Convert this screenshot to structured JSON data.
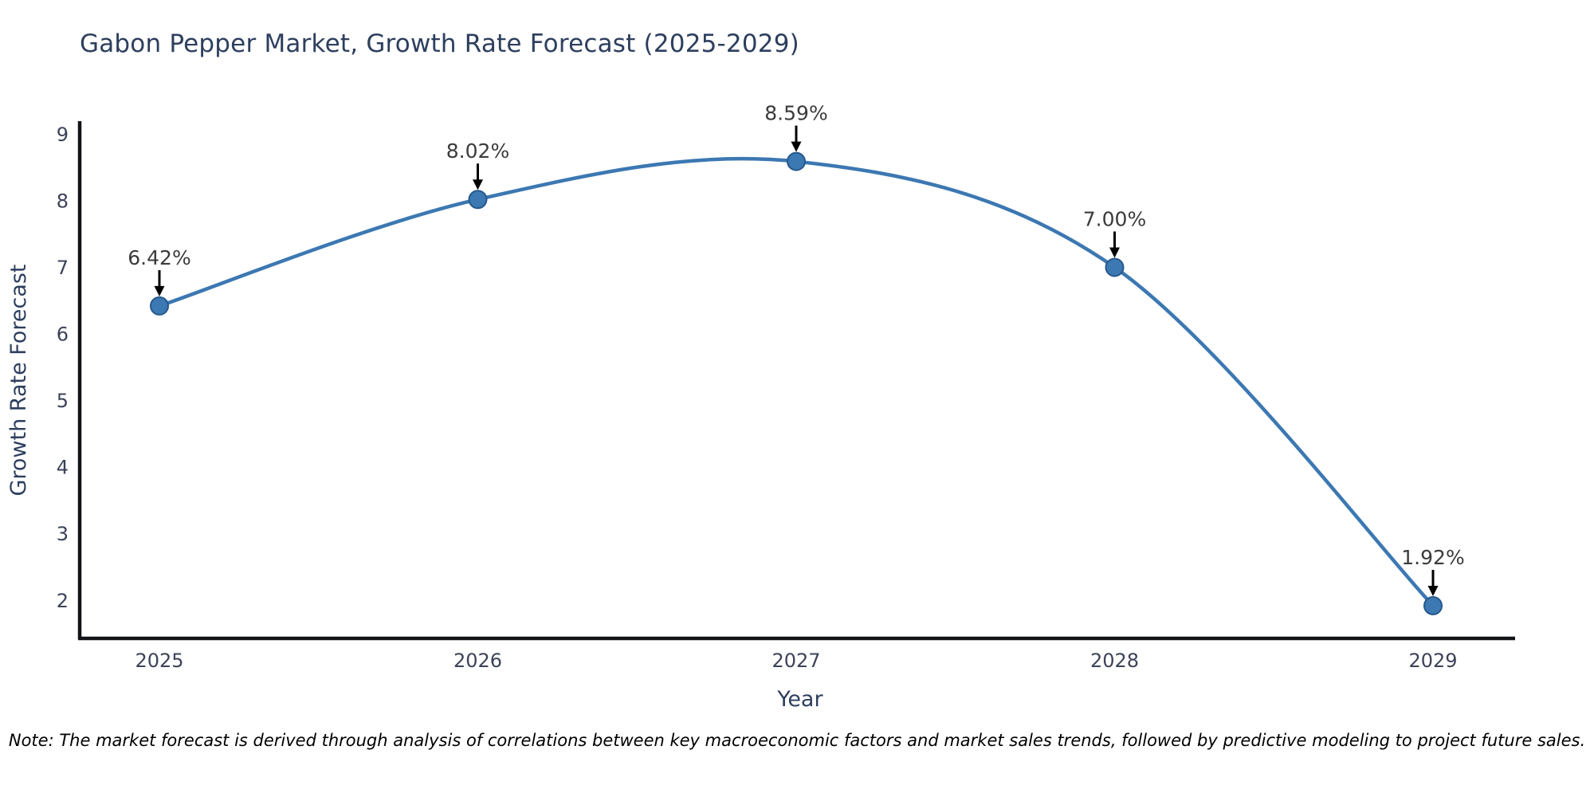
{
  "chart": {
    "note": "Note: The market forecast is derived through analysis of correlations between key macroeconomic factors and market sales trends, followed by predictive modeling to project future sales."
  },
  "chart_data": {
    "type": "line",
    "title": "Gabon Pepper Market, Growth Rate Forecast (2025-2029)",
    "xlabel": "Year",
    "ylabel": "Growth Rate Forecast",
    "x": [
      2025,
      2026,
      2027,
      2028,
      2029
    ],
    "y": [
      6.42,
      8.02,
      8.59,
      7.0,
      1.92
    ],
    "point_labels": [
      "6.42%",
      "8.02%",
      "8.59%",
      "7.00%",
      "1.92%"
    ],
    "yticks": [
      2,
      3,
      4,
      5,
      6,
      7,
      8,
      9
    ],
    "ylim": [
      1.4,
      9.5
    ],
    "xlim": [
      2024.75,
      2029.28
    ],
    "line_shape": "spline",
    "grid": false,
    "legend": false,
    "colors": {
      "line": "#3c78b2",
      "marker_fill": "#3c78b2",
      "marker_edge": "#27598c",
      "axis": "#111318",
      "tick_label": "#3c4358",
      "axis_title": "#2d3f5e",
      "annotation_text": "#3b3b3b",
      "annotation_arrow": "#000000",
      "title": "#2d3f5e",
      "background": "#ffffff"
    }
  }
}
